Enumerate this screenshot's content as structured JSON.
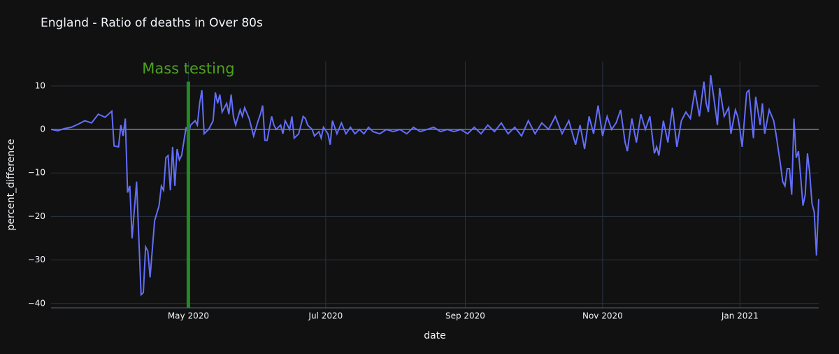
{
  "chart_data": {
    "type": "line",
    "title": "England - Ratio of deaths in Over 80s",
    "x_label": "date",
    "y_label": "percent_difference",
    "x": [
      0,
      3,
      6,
      9,
      12,
      15,
      18,
      21,
      24,
      27,
      28,
      30,
      31,
      32,
      33,
      34,
      35,
      36,
      38,
      40,
      41,
      42,
      43,
      44,
      46,
      48,
      49,
      50,
      51,
      52,
      53,
      54,
      55,
      56,
      57,
      58,
      60,
      61,
      62,
      64,
      65,
      66,
      67,
      68,
      70,
      72,
      73,
      74,
      75,
      76,
      78,
      79,
      80,
      81,
      82,
      84,
      85,
      86,
      88,
      90,
      92,
      93,
      94,
      95,
      96,
      98,
      99,
      100,
      102,
      103,
      104,
      106,
      107,
      108,
      110,
      112,
      113,
      114,
      116,
      117,
      119,
      120,
      121,
      123,
      124,
      125,
      127,
      129,
      131,
      133,
      135,
      137,
      139,
      141,
      143,
      146,
      149,
      152,
      155,
      158,
      161,
      164,
      167,
      170,
      173,
      176,
      179,
      182,
      185,
      188,
      191,
      194,
      197,
      200,
      203,
      206,
      209,
      212,
      215,
      218,
      221,
      224,
      227,
      230,
      233,
      235,
      237,
      239,
      241,
      243,
      245,
      247,
      249,
      251,
      253,
      255,
      256,
      258,
      260,
      262,
      264,
      266,
      268,
      269,
      270,
      272,
      274,
      276,
      278,
      280,
      282,
      284,
      286,
      288,
      290,
      291,
      292,
      293,
      295,
      296,
      297,
      299,
      301,
      302,
      304,
      305,
      306,
      307,
      309,
      310,
      312,
      313,
      315,
      316,
      317,
      319,
      321,
      322,
      324,
      325,
      326,
      327,
      328,
      329,
      330,
      331,
      332,
      333,
      334,
      335,
      336,
      337,
      338,
      339,
      340,
      341
    ],
    "series": [
      {
        "name": "percent_difference",
        "color": "#636efa",
        "values": [
          0,
          -0.3,
          0.2,
          0.5,
          1.2,
          2,
          1.5,
          3.5,
          2.8,
          4.2,
          -3.8,
          -4,
          1,
          -1.5,
          2.5,
          -14.5,
          -13,
          -25,
          -12,
          -38,
          -37.5,
          -27,
          -28,
          -34,
          -21,
          -17.5,
          -13,
          -14,
          -6.5,
          -6,
          -14,
          -4,
          -13,
          -4.5,
          -7,
          -6,
          0.5,
          -1,
          1,
          2,
          1,
          6,
          9,
          -1,
          0,
          2,
          8.5,
          6,
          8,
          4,
          6,
          3.5,
          8,
          3,
          1,
          4.5,
          3,
          5,
          2.5,
          -1.5,
          2,
          3.5,
          5.5,
          -2.5,
          -2.5,
          3,
          1,
          0,
          1,
          -1,
          2,
          0,
          3,
          -2,
          -1,
          3,
          2.5,
          1,
          0,
          -1.5,
          -0.5,
          -2,
          0.5,
          -1,
          -3.5,
          2,
          -1,
          1.5,
          -1,
          0.5,
          -1,
          0,
          -1,
          0.5,
          -0.5,
          -1,
          0,
          -0.5,
          0,
          -1,
          0.5,
          -0.5,
          0,
          0.5,
          -0.5,
          0,
          -0.5,
          0,
          -1,
          0.5,
          -1,
          1,
          -0.5,
          1.5,
          -1,
          0.5,
          -1.5,
          2,
          -1,
          1.5,
          0,
          3,
          -1,
          2,
          -3.5,
          1,
          -4.5,
          3,
          -1,
          5.5,
          -1.5,
          3,
          0,
          1.5,
          4.5,
          -3,
          -5,
          2.5,
          -3,
          3.5,
          0,
          3,
          -5.5,
          -4,
          -6,
          2,
          -3,
          5,
          -4,
          2,
          4,
          2.5,
          9,
          3,
          11,
          6,
          4,
          12.5,
          5,
          1,
          9.5,
          3,
          5,
          -1,
          4.5,
          3,
          0,
          -4,
          8.5,
          9,
          -2,
          7.5,
          1,
          6,
          -1,
          4.5,
          2,
          -1,
          -8,
          -12,
          -13,
          -9,
          -9,
          -15,
          2.5,
          -6.5,
          -5,
          -11,
          -17.5,
          -15,
          -5.5,
          -10,
          -17,
          -19,
          -29,
          -16
        ]
      }
    ],
    "xlim": [
      0,
      341
    ],
    "xticks": [
      {
        "value": 61,
        "label": "May 2020"
      },
      {
        "value": 122,
        "label": "Jul 2020"
      },
      {
        "value": 184,
        "label": "Sep 2020"
      },
      {
        "value": 245,
        "label": "Nov 2020"
      },
      {
        "value": 306,
        "label": "Jan 2021"
      }
    ],
    "ylim": [
      -41,
      15.6
    ],
    "yticks": [
      {
        "value": -40,
        "label": "−40"
      },
      {
        "value": -30,
        "label": "−30"
      },
      {
        "value": -20,
        "label": "−20"
      },
      {
        "value": -10,
        "label": "−10"
      },
      0,
      10
    ],
    "grid": true,
    "vline": {
      "x": 61,
      "y0": -41,
      "y1": 11,
      "label": "Mass testing",
      "color": "#228b22",
      "label_color": "#4ea11f"
    }
  }
}
